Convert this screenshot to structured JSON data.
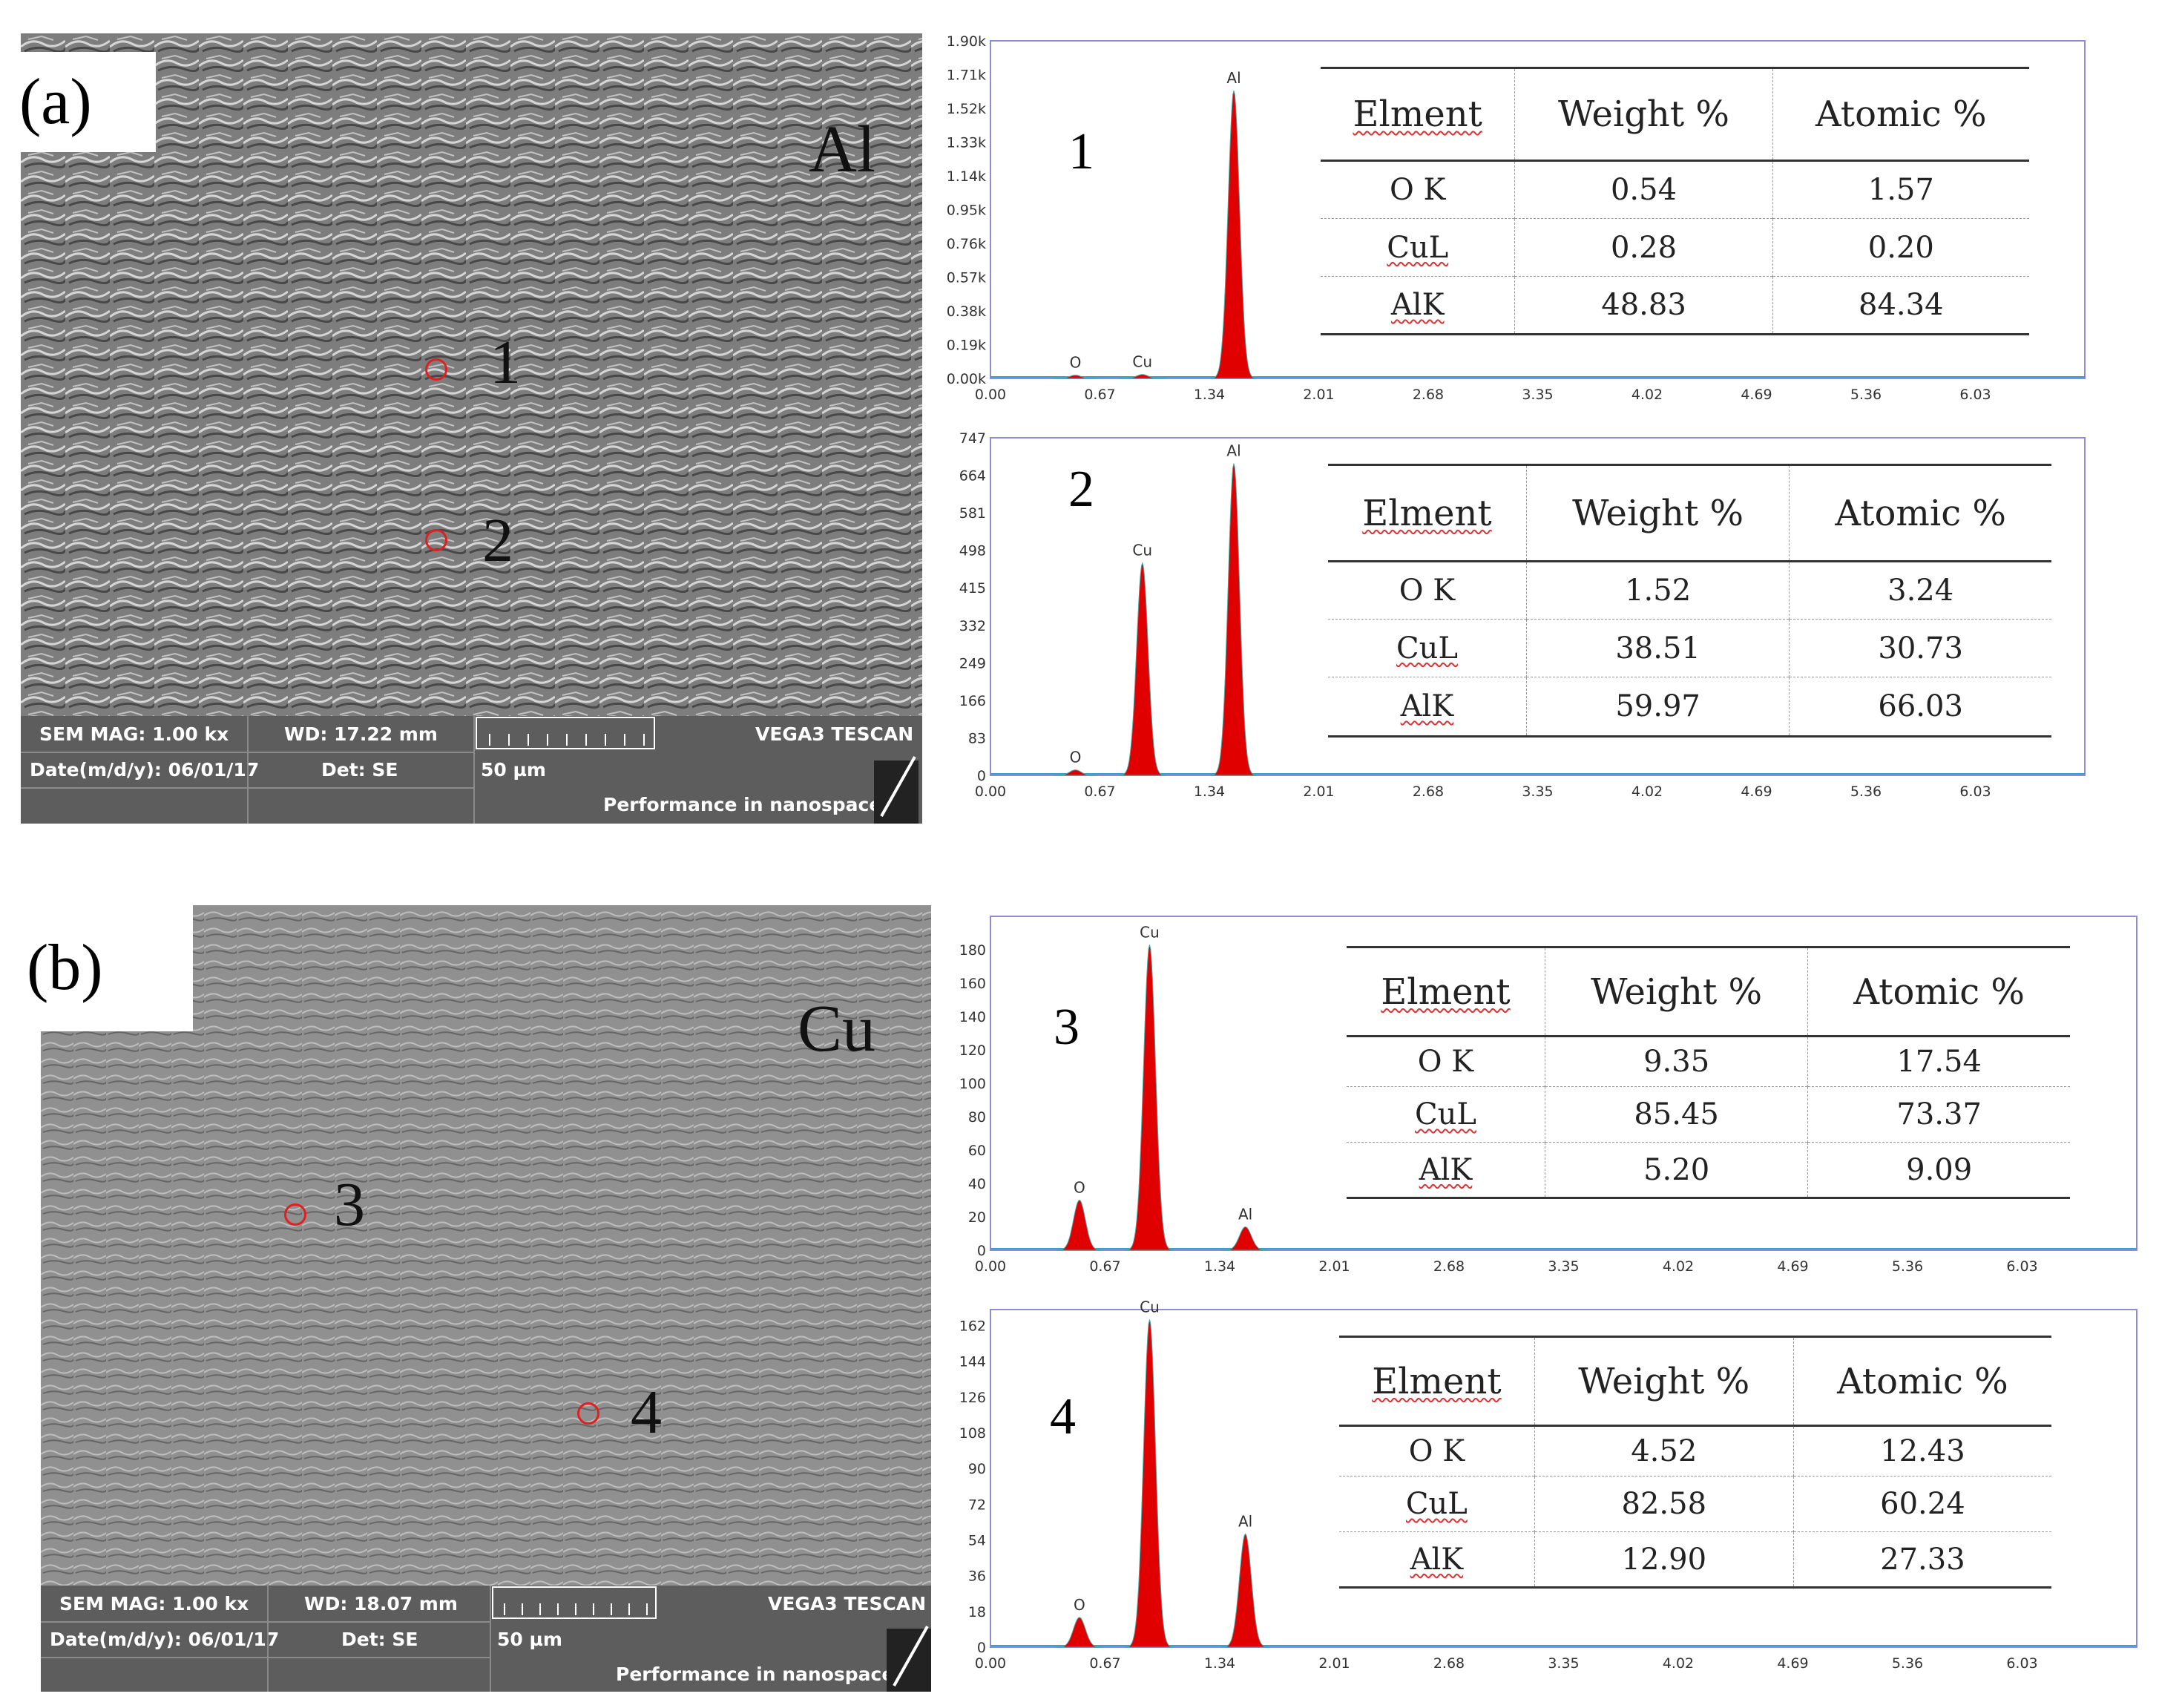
{
  "panels": [
    {
      "letter": "(a)",
      "material": "Al",
      "sem": {
        "mag": "SEM MAG: 1.00 kx",
        "wd": "WD: 17.22 mm",
        "vendor": "VEGA3 TESCAN",
        "date": "Date(m/d/y): 06/01/17",
        "det": "Det: SE",
        "scale": "50 µm",
        "slogan": "Performance in nanospace"
      },
      "spots": [
        "1",
        "2"
      ]
    },
    {
      "letter": "(b)",
      "material": "Cu",
      "sem": {
        "mag": "SEM MAG: 1.00 kx",
        "wd": "WD: 18.07 mm",
        "vendor": "VEGA3 TESCAN",
        "date": "Date(m/d/y): 06/01/17",
        "det": "Det: SE",
        "scale": "50 µm",
        "slogan": "Performance in nanospace"
      },
      "spots": [
        "3",
        "4"
      ]
    }
  ],
  "table_headers": [
    "Elment",
    "Weight %",
    "Atomic %"
  ],
  "chart_data": [
    {
      "type": "line",
      "label": "1",
      "x_ticks": [
        "0.00",
        "0.67",
        "1.34",
        "2.01",
        "2.68",
        "3.35",
        "4.02",
        "4.69",
        "5.36",
        "6.03"
      ],
      "y_ticks": [
        "0.00k",
        "0.19k",
        "0.38k",
        "0.57k",
        "0.76k",
        "0.95k",
        "1.14k",
        "1.33k",
        "1.52k",
        "1.71k",
        "1.90k"
      ],
      "xlim": [
        0,
        6.7
      ],
      "ylim": [
        0,
        1900
      ],
      "peaks": [
        {
          "element": "O",
          "energy": 0.52,
          "counts": 18
        },
        {
          "element": "Cu",
          "energy": 0.93,
          "counts": 22
        },
        {
          "element": "Al",
          "energy": 1.49,
          "counts": 1620
        }
      ],
      "composition": [
        {
          "element": "O K",
          "weight": "0.54",
          "atomic": "1.57"
        },
        {
          "element": "CuL",
          "weight": "0.28",
          "atomic": "0.20"
        },
        {
          "element": "AlK",
          "weight": "48.83",
          "atomic": "84.34"
        }
      ],
      "color": "#e00000"
    },
    {
      "type": "line",
      "label": "2",
      "x_ticks": [
        "0.00",
        "0.67",
        "1.34",
        "2.01",
        "2.68",
        "3.35",
        "4.02",
        "4.69",
        "5.36",
        "6.03"
      ],
      "y_ticks": [
        "0",
        "83",
        "166",
        "249",
        "332",
        "415",
        "498",
        "581",
        "664",
        "747"
      ],
      "xlim": [
        0,
        6.7
      ],
      "ylim": [
        0,
        747
      ],
      "peaks": [
        {
          "element": "O",
          "energy": 0.52,
          "counts": 12
        },
        {
          "element": "Cu",
          "energy": 0.93,
          "counts": 470
        },
        {
          "element": "Al",
          "energy": 1.49,
          "counts": 690
        }
      ],
      "composition": [
        {
          "element": "O K",
          "weight": "1.52",
          "atomic": "3.24"
        },
        {
          "element": "CuL",
          "weight": "38.51",
          "atomic": "30.73"
        },
        {
          "element": "AlK",
          "weight": "59.97",
          "atomic": "66.03"
        }
      ],
      "color": "#e00000"
    },
    {
      "type": "line",
      "label": "3",
      "x_ticks": [
        "0.00",
        "0.67",
        "1.34",
        "2.01",
        "2.68",
        "3.35",
        "4.02",
        "4.69",
        "5.36",
        "6.03"
      ],
      "y_ticks": [
        "0",
        "20",
        "40",
        "60",
        "80",
        "100",
        "120",
        "140",
        "160",
        "180"
      ],
      "xlim": [
        0,
        6.7
      ],
      "ylim": [
        0,
        200
      ],
      "peaks": [
        {
          "element": "O",
          "energy": 0.52,
          "counts": 30
        },
        {
          "element": "Cu",
          "energy": 0.93,
          "counts": 183
        },
        {
          "element": "Al",
          "energy": 1.49,
          "counts": 14
        }
      ],
      "composition": [
        {
          "element": "O K",
          "weight": "9.35",
          "atomic": "17.54"
        },
        {
          "element": "CuL",
          "weight": "85.45",
          "atomic": "73.37"
        },
        {
          "element": "AlK",
          "weight": "5.20",
          "atomic": "9.09"
        }
      ],
      "color": "#e00000"
    },
    {
      "type": "line",
      "label": "4",
      "x_ticks": [
        "0.00",
        "0.67",
        "1.34",
        "2.01",
        "2.68",
        "3.35",
        "4.02",
        "4.69",
        "5.36",
        "6.03"
      ],
      "y_ticks": [
        "0",
        "18",
        "36",
        "54",
        "72",
        "90",
        "108",
        "126",
        "144",
        "162"
      ],
      "xlim": [
        0,
        6.7
      ],
      "ylim": [
        0,
        170
      ],
      "peaks": [
        {
          "element": "O",
          "energy": 0.52,
          "counts": 15
        },
        {
          "element": "Cu",
          "energy": 0.93,
          "counts": 165
        },
        {
          "element": "Al",
          "energy": 1.49,
          "counts": 57
        }
      ],
      "composition": [
        {
          "element": "O K",
          "weight": "4.52",
          "atomic": "12.43"
        },
        {
          "element": "CuL",
          "weight": "82.58",
          "atomic": "60.24"
        },
        {
          "element": "AlK",
          "weight": "12.90",
          "atomic": "27.33"
        }
      ],
      "color": "#e00000"
    }
  ]
}
